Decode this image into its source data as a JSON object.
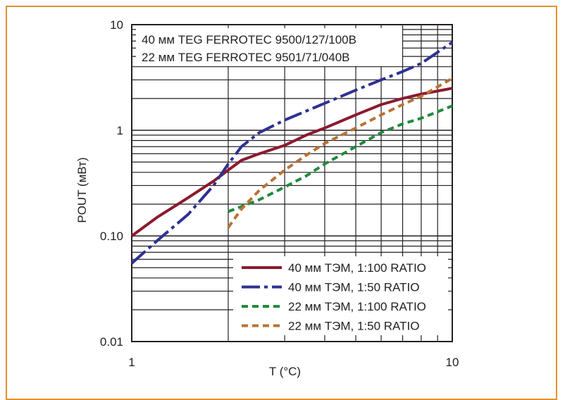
{
  "chart_data": {
    "type": "line",
    "x_scale": "log",
    "y_scale": "log",
    "xlim": [
      1,
      10
    ],
    "ylim": [
      0.01,
      10
    ],
    "xlabel": "T (°C)",
    "ylabel": "POUT (мВт)",
    "x_ticks": [
      "1",
      "10"
    ],
    "y_ticks": [
      "0.01",
      "0.10",
      "1",
      "10"
    ],
    "grid": true,
    "annotations": [
      "40 мм TEG FERROTEC 9500/127/100B",
      "22 мм TEG FERROTEC 9501/71/040B"
    ],
    "legend_position": "bottom-right",
    "series": [
      {
        "name": "40 мм ТЭМ, 1:100 RATIO",
        "color": "#8b1a2e",
        "dash": "solid",
        "points": [
          [
            1,
            0.1
          ],
          [
            1.2,
            0.15
          ],
          [
            1.5,
            0.23
          ],
          [
            1.8,
            0.33
          ],
          [
            2,
            0.42
          ],
          [
            2.2,
            0.52
          ],
          [
            2.5,
            0.6
          ],
          [
            3,
            0.72
          ],
          [
            3.5,
            0.9
          ],
          [
            4,
            1.05
          ],
          [
            5,
            1.4
          ],
          [
            6,
            1.75
          ],
          [
            7,
            2.0
          ],
          [
            8,
            2.2
          ],
          [
            10,
            2.5
          ]
        ]
      },
      {
        "name": "40 мм ТЭМ, 1:50 RATIO",
        "color": "#2e3192",
        "dash": "long-dash-dot",
        "points": [
          [
            1,
            0.055
          ],
          [
            1.2,
            0.09
          ],
          [
            1.5,
            0.16
          ],
          [
            1.8,
            0.3
          ],
          [
            2,
            0.48
          ],
          [
            2.2,
            0.7
          ],
          [
            2.5,
            0.95
          ],
          [
            3,
            1.25
          ],
          [
            4,
            1.8
          ],
          [
            5,
            2.4
          ],
          [
            6,
            3.0
          ],
          [
            7,
            3.6
          ],
          [
            8,
            4.3
          ],
          [
            10,
            6.8
          ]
        ]
      },
      {
        "name": "22 мм ТЭМ, 1:100 RATIO",
        "color": "#1f8a3c",
        "dash": "dashed",
        "points": [
          [
            2,
            0.17
          ],
          [
            2.5,
            0.22
          ],
          [
            3,
            0.29
          ],
          [
            3.5,
            0.37
          ],
          [
            4,
            0.48
          ],
          [
            5,
            0.7
          ],
          [
            6,
            0.95
          ],
          [
            7,
            1.15
          ],
          [
            8,
            1.3
          ],
          [
            10,
            1.7
          ]
        ]
      },
      {
        "name": "22 мм ТЭМ, 1:50 RATIO",
        "color": "#b87333",
        "dash": "dashed",
        "points": [
          [
            2,
            0.12
          ],
          [
            2.2,
            0.18
          ],
          [
            2.5,
            0.27
          ],
          [
            3,
            0.42
          ],
          [
            3.5,
            0.58
          ],
          [
            4,
            0.75
          ],
          [
            5,
            1.05
          ],
          [
            6,
            1.4
          ],
          [
            7,
            1.75
          ],
          [
            8,
            2.1
          ],
          [
            10,
            3.1
          ]
        ]
      }
    ]
  }
}
